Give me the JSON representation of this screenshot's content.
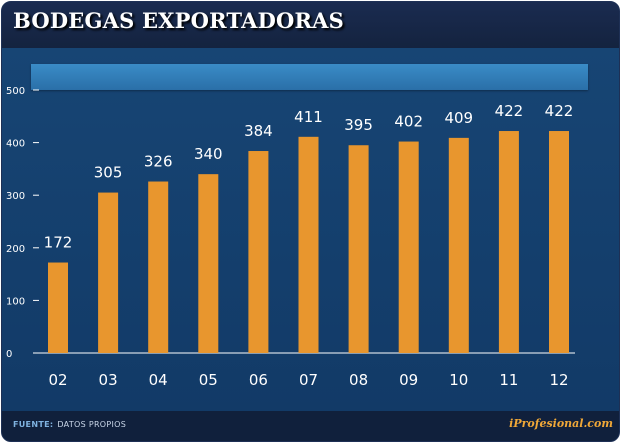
{
  "header": {
    "title": "BODEGAS EXPORTADORAS"
  },
  "footer": {
    "source_label": "FUENTE:",
    "source_text": "DATOS PROPIOS",
    "brand": "iProfesional.com"
  },
  "colors": {
    "bar": "#e8962e",
    "background": "#183660",
    "banner": "#2f7ab8",
    "text": "#ffffff",
    "axis": "#ffffff"
  },
  "chart_data": {
    "type": "bar",
    "title": "BODEGAS EXPORTADORAS",
    "xlabel": "",
    "ylabel": "",
    "categories": [
      "02",
      "03",
      "04",
      "05",
      "06",
      "07",
      "08",
      "09",
      "10",
      "11",
      "12"
    ],
    "values": [
      172,
      305,
      326,
      340,
      384,
      411,
      395,
      402,
      409,
      422,
      422
    ],
    "ylim": [
      0,
      500
    ],
    "yticks": [
      0,
      100,
      200,
      300,
      400,
      500
    ],
    "grid": false,
    "data_labels": true
  }
}
